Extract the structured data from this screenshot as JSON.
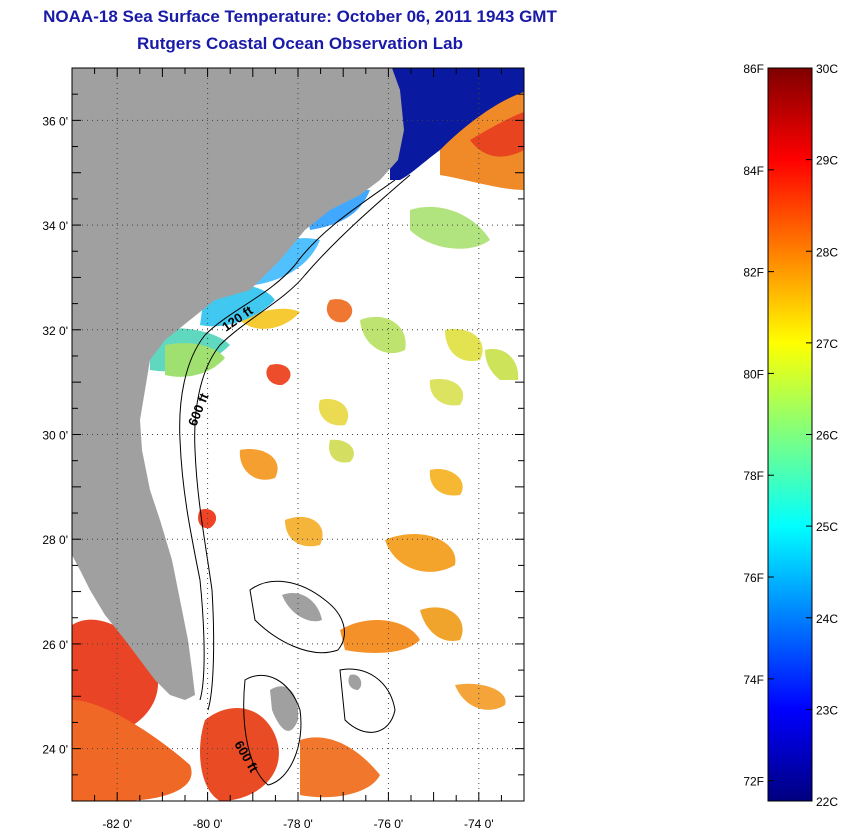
{
  "title": "NOAA-18 Sea Surface Temperature:  October 06, 2011 1943 GMT",
  "subtitle": "Rutgers Coastal Ocean Observation Lab",
  "map": {
    "lon_range": [
      -83,
      -73
    ],
    "lat_range": [
      23,
      37
    ],
    "lat_ticks": [
      {
        "value": 36,
        "label": "36 0'"
      },
      {
        "value": 34,
        "label": "34 0'"
      },
      {
        "value": 32,
        "label": "32 0'"
      },
      {
        "value": 30,
        "label": "30 0'"
      },
      {
        "value": 28,
        "label": "28 0'"
      },
      {
        "value": 26,
        "label": "26 0'"
      },
      {
        "value": 24,
        "label": "24 0'"
      }
    ],
    "lon_ticks": [
      {
        "value": -82,
        "label": "-82 0'"
      },
      {
        "value": -80,
        "label": "-80 0'"
      },
      {
        "value": -78,
        "label": "-78 0'"
      },
      {
        "value": -76,
        "label": "-76 0'"
      },
      {
        "value": -74,
        "label": "-74 0'"
      }
    ],
    "grid": "dotted",
    "contour_labels": [
      "120 ft",
      "600 ft",
      "600 ft"
    ],
    "land_color": "#a0a0a0"
  },
  "colorbar": {
    "celsius_range": [
      22,
      30
    ],
    "fahrenheit_range": [
      72,
      86
    ],
    "c_labels": [
      "30C",
      "29C",
      "28C",
      "27C",
      "26C",
      "25C",
      "24C",
      "23C",
      "22C"
    ],
    "f_labels": [
      "86F",
      "84F",
      "82F",
      "80F",
      "78F",
      "76F",
      "74F",
      "72F"
    ],
    "colors": [
      "#00007f",
      "#0000ff",
      "#007fff",
      "#00ffff",
      "#7fff7f",
      "#ffff00",
      "#ff7f00",
      "#ff0000",
      "#7f0000"
    ]
  }
}
